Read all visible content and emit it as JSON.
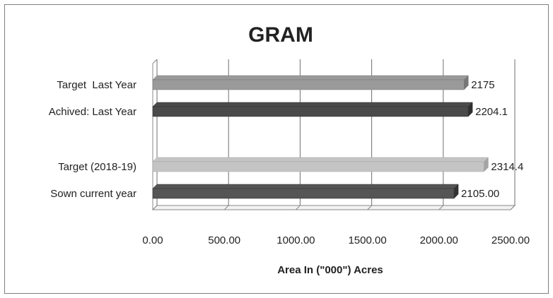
{
  "chart_data": {
    "type": "bar",
    "orientation": "horizontal",
    "title": "GRAM",
    "xlabel": "Area In (\"000\") Acres",
    "ylabel": "",
    "xlim": [
      0,
      2500
    ],
    "x_ticks": [
      "0.00",
      "500.00",
      "1000.00",
      "1500.00",
      "2000.00",
      "2500.00"
    ],
    "grid": true,
    "legend": "none",
    "style": "3d",
    "categories": [
      "Target  Last Year",
      "Achived: Last Year",
      "Target (2018-19)",
      "Sown current year"
    ],
    "values": [
      2175,
      2204.1,
      2314.4,
      2105.0
    ],
    "data_labels": [
      "2175",
      "2204.1",
      "2314.4",
      "2105.00"
    ],
    "colors": [
      "#9a9a9a",
      "#4a4a4a",
      "#c4c4c4",
      "#555555"
    ],
    "colors_dark": [
      "#777777",
      "#2e2e2e",
      "#a3a3a3",
      "#333333"
    ]
  }
}
